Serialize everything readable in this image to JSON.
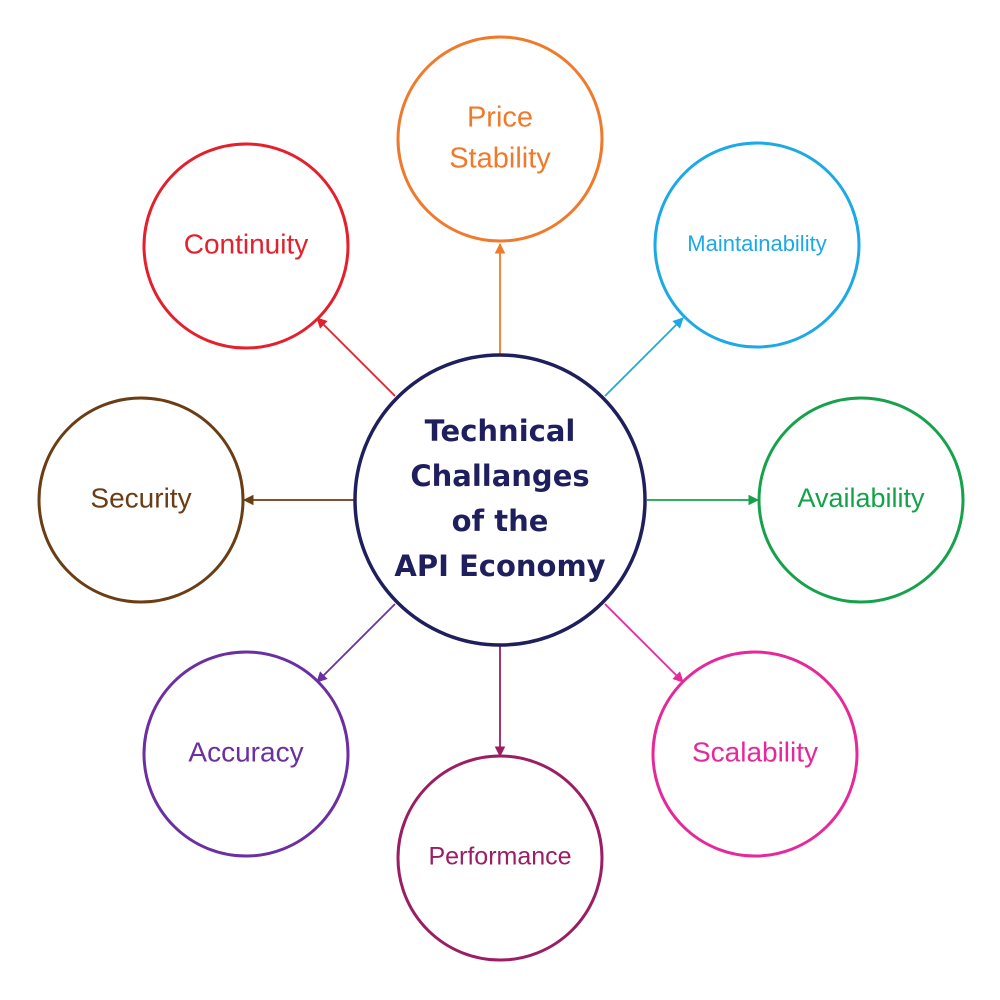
{
  "center": {
    "lines": [
      "Technical",
      "Challanges",
      "of the",
      "API Economy"
    ],
    "color": "#1f1f5e"
  },
  "nodes": [
    {
      "key": "price",
      "lines": [
        "Price",
        "Stability"
      ],
      "color": "#f07a2b"
    },
    {
      "key": "maintainability",
      "lines": [
        "Maintainability"
      ],
      "color": "#1ca9e6"
    },
    {
      "key": "availability",
      "lines": [
        "Availability"
      ],
      "color": "#15a24a"
    },
    {
      "key": "scalability",
      "lines": [
        "Scalability"
      ],
      "color": "#e5299a"
    },
    {
      "key": "performance",
      "lines": [
        "Performance"
      ],
      "color": "#9b1d63"
    },
    {
      "key": "accuracy",
      "lines": [
        "Accuracy"
      ],
      "color": "#6b2fa2"
    },
    {
      "key": "security",
      "lines": [
        "Security"
      ],
      "color": "#6b3d14"
    },
    {
      "key": "continuity",
      "lines": [
        "Continuity"
      ],
      "color": "#e3202b"
    }
  ]
}
